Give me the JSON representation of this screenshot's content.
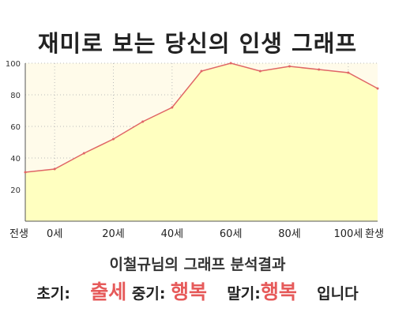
{
  "header": {
    "title": "재미로 보는 당신의 인생 그래프"
  },
  "chart_data": {
    "type": "area",
    "title": "재미로 보는 당신의 인생 그래프",
    "xlabel": "",
    "ylabel": "",
    "x_ticks": [
      "전생",
      "0세",
      "20세",
      "40세",
      "60세",
      "80세",
      "100세",
      "환생"
    ],
    "y_ticks": [
      "20",
      "40",
      "60",
      "80",
      "100"
    ],
    "ylim": [
      0,
      100
    ],
    "x": [
      "전생",
      "0세",
      "10세",
      "20세",
      "30세",
      "40세",
      "50세",
      "60세",
      "70세",
      "80세",
      "90세",
      "100세",
      "환생"
    ],
    "values": [
      31,
      33,
      43,
      52,
      63,
      72,
      95,
      100,
      95,
      98,
      96,
      94,
      84
    ],
    "grid": true,
    "colors": {
      "fill": "#ffffc0",
      "line": "#e06666",
      "grid": "#bbbbbb",
      "plot_bg": "#fffbea"
    }
  },
  "summary": {
    "text": "이철규님의 그래프 분석결과",
    "early_label": "초기:",
    "early_value": "출세",
    "mid_label": "중기:",
    "mid_value": "행복",
    "late_label": "말기:",
    "late_value": "행복",
    "tail": "입니다"
  }
}
